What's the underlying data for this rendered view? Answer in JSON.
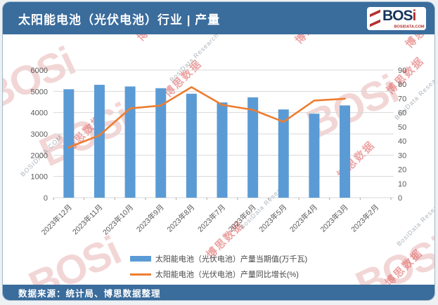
{
  "header": {
    "title": "太阳能电池（光伏电池）行业 | 产量",
    "logo": {
      "text": "BOSi",
      "subtext": "BOSIDATA.COM"
    }
  },
  "footer": {
    "source": "数据来源：统计局、博思数据整理"
  },
  "watermark": {
    "brand": "BOSi",
    "red_text": "博思数据",
    "gray_text": "BosiData Research",
    "gray_text_alt": "BOSIDATA.COM"
  },
  "colors": {
    "header_blue": "#3A6C9C",
    "bar_blue": "#5B9BD5",
    "line_orange": "#ED7D31",
    "gridline": "#D9D9D9",
    "tick": "#A6A6A6",
    "axis_text": "#595959"
  },
  "chart_data": {
    "type": "bar",
    "subtype": "combo-bar-line-dual-axis",
    "title": "太阳能电池（光伏电池）行业 | 产量",
    "categories": [
      "2023年12月",
      "2023年11月",
      "2023年10月",
      "2023年9月",
      "2023年8月",
      "2023年7月",
      "2023年6月",
      "2023年5月",
      "2023年4月",
      "2023年3月",
      "2023年2月"
    ],
    "series": [
      {
        "name": "太阳能电池（光伏电池）产量当期值(万千瓦)",
        "type": "bar",
        "axis": "left",
        "color": "#5B9BD5",
        "values": [
          5100,
          5310,
          5230,
          5150,
          4890,
          4480,
          4720,
          4150,
          3950,
          4340,
          null
        ]
      },
      {
        "name": "太阳能电池（光伏电池）产量同比增长(%)",
        "type": "line",
        "axis": "right",
        "color": "#ED7D31",
        "values": [
          35.5,
          44,
          63,
          65,
          78,
          65.5,
          62,
          53.5,
          68.5,
          69.8,
          null
        ]
      }
    ],
    "left_axis": {
      "min": 0,
      "max": 6000,
      "step": 1000
    },
    "right_axis": {
      "min": 0,
      "max": 90,
      "step": 10
    },
    "grid": true,
    "legend_position": "bottom"
  }
}
